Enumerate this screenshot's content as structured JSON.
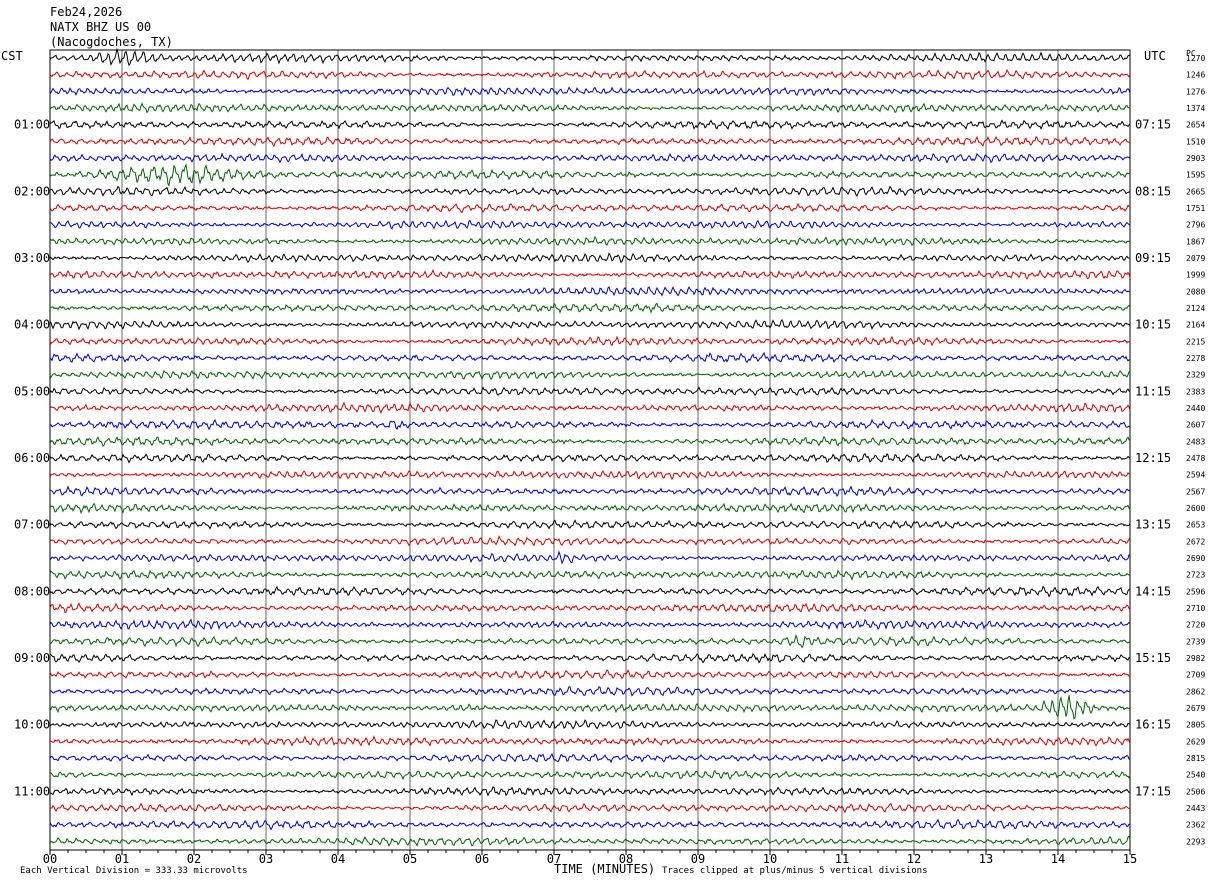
{
  "header": {
    "date": "Feb24,2026",
    "station": "NATX BHZ US 00",
    "location": "(Nacogdoches, TX)"
  },
  "left_axis_label": "CST",
  "right_axis_label": "UTC",
  "right_column_label": "PC",
  "footer": {
    "scale_note": "Each Vertical Division =  333.33 microvolts",
    "clip_note": "Traces clipped at plus/minus 5 vertical divisions"
  },
  "chart_data": {
    "type": "line",
    "title": "",
    "xlabel": "TIME (MINUTES)",
    "ylabel": "",
    "xlim": [
      0,
      15
    ],
    "x_ticks": [
      "00",
      "01",
      "02",
      "03",
      "04",
      "05",
      "06",
      "07",
      "08",
      "09",
      "10",
      "11",
      "12",
      "13",
      "14",
      "15"
    ],
    "trace_count": 48,
    "minutes_per_trace": 15,
    "trace_colors": [
      "#000000",
      "#dd0000",
      "#0000cc",
      "#006600"
    ],
    "cst_hour_labels": [
      "01:00",
      "02:00",
      "03:00",
      "04:00",
      "05:00",
      "06:00",
      "07:00",
      "08:00",
      "09:00",
      "10:00",
      "11:00"
    ],
    "utc_hour_labels": [
      "07:15",
      "08:15",
      "09:15",
      "10:15",
      "11:15",
      "12:15",
      "13:15",
      "14:15",
      "15:15",
      "16:15",
      "17:15"
    ],
    "hour_label_trace_indices": [
      4,
      8,
      12,
      16,
      20,
      24,
      28,
      32,
      36,
      40,
      44
    ],
    "trace_pc_values": [
      "1270",
      "1246",
      "1276",
      "1374",
      "2654",
      "1510",
      "2903",
      "1595",
      "2665",
      "1751",
      "2796",
      "1867",
      "2079",
      "1999",
      "2080",
      "2124",
      "2164",
      "2215",
      "2278",
      "2329",
      "2383",
      "2440",
      "2607",
      "2483",
      "2478",
      "2594",
      "2567",
      "2600",
      "2653",
      "2672",
      "2690",
      "2723",
      "2596",
      "2710",
      "2720",
      "2739",
      "2982",
      "2709",
      "2862",
      "2679",
      "2805",
      "2629",
      "2815",
      "2540",
      "2506",
      "2443",
      "2362",
      "2293"
    ],
    "notable_events": [
      {
        "trace": 0,
        "start_min": 0.4,
        "end_min": 1.6,
        "amplitude": 3.0
      },
      {
        "trace": 7,
        "start_min": 0.3,
        "end_min": 3.2,
        "amplitude": 2.4
      },
      {
        "trace": 39,
        "start_min": 5.2,
        "end_min": 6.2,
        "amplitude": 2.2
      },
      {
        "trace": 35,
        "start_min": 10.1,
        "end_min": 10.7,
        "amplitude": 1.4
      },
      {
        "trace": 39,
        "start_min": 13.7,
        "end_min": 14.6,
        "amplitude": 5.0
      },
      {
        "trace": 30,
        "start_min": 7.0,
        "end_min": 7.3,
        "amplitude": 1.3
      },
      {
        "trace": 22,
        "start_min": 4.6,
        "end_min": 5.0,
        "amplitude": 1.2
      }
    ]
  }
}
